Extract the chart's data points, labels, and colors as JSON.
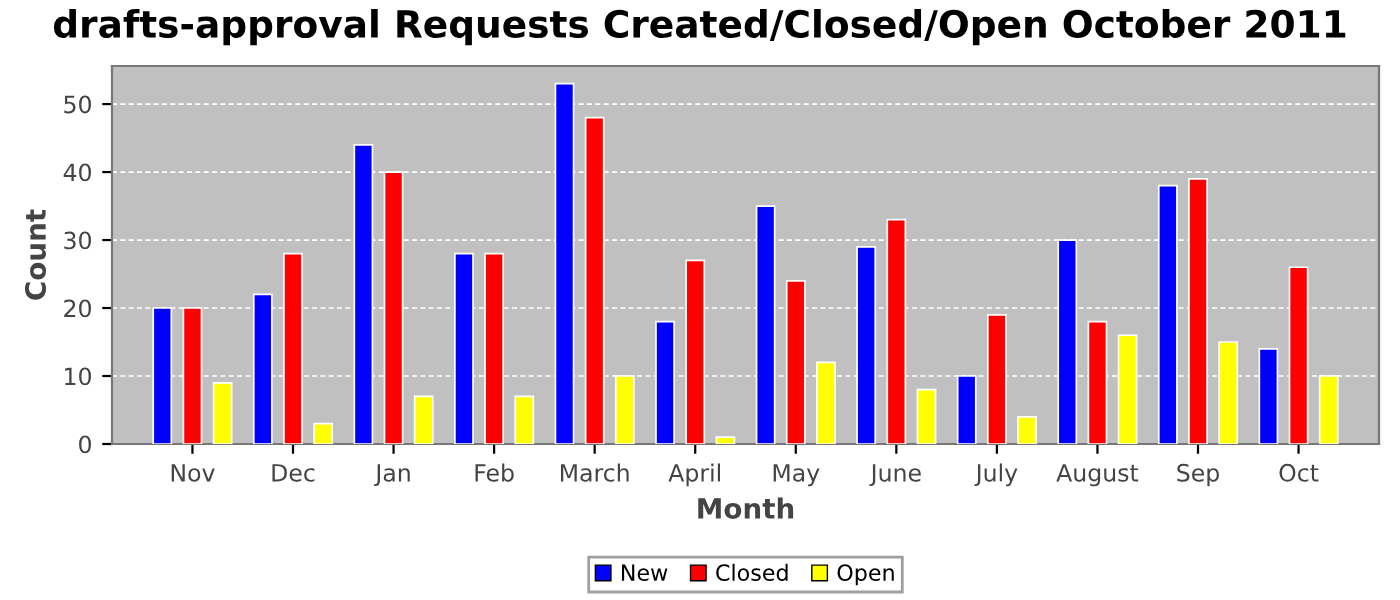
{
  "chart_data": {
    "type": "bar",
    "title": "drafts-approval Requests Created/Closed/Open October 2011",
    "xlabel": "Month",
    "ylabel": "Count",
    "categories": [
      "Nov",
      "Dec",
      "Jan",
      "Feb",
      "March",
      "April",
      "May",
      "June",
      "July",
      "August",
      "Sep",
      "Oct"
    ],
    "series": [
      {
        "name": "New",
        "color": "#0000ff",
        "values": [
          20,
          22,
          44,
          28,
          53,
          18,
          35,
          29,
          10,
          30,
          38,
          14
        ]
      },
      {
        "name": "Closed",
        "color": "#ff0000",
        "values": [
          20,
          28,
          40,
          28,
          48,
          27,
          24,
          33,
          19,
          18,
          39,
          26
        ]
      },
      {
        "name": "Open",
        "color": "#ffff00",
        "values": [
          9,
          3,
          7,
          7,
          10,
          1,
          12,
          8,
          4,
          16,
          15,
          10
        ]
      }
    ],
    "ylim": [
      0,
      55.6
    ],
    "yticks": [
      0,
      10,
      20,
      30,
      40,
      50
    ],
    "grid": "y",
    "legend": "bottom"
  }
}
